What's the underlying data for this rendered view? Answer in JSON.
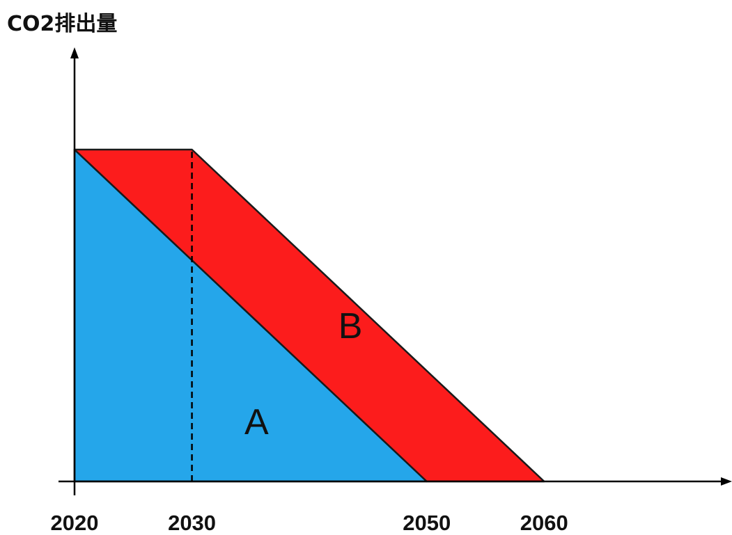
{
  "chart_data": {
    "type": "area",
    "ylabel": "CO2排出量",
    "xlabel": "",
    "x_ticks": [
      {
        "year": 2020,
        "label": "2020"
      },
      {
        "year": 2030,
        "label": "2030"
      },
      {
        "year": 2050,
        "label": "2050"
      },
      {
        "year": 2060,
        "label": "2060"
      }
    ],
    "xlim": [
      2020,
      2076
    ],
    "ylim": [
      0,
      1.0
    ],
    "grid": false,
    "regions": [
      {
        "label": "A",
        "color": "#25a6ea",
        "points": [
          [
            2020,
            1.0
          ],
          [
            2050,
            0
          ],
          [
            2020,
            0
          ]
        ]
      },
      {
        "label": "B",
        "color": "#fc1c1c",
        "points": [
          [
            2020,
            1.0
          ],
          [
            2030,
            1.0
          ],
          [
            2060,
            0
          ],
          [
            2050,
            0
          ]
        ]
      }
    ],
    "reference_lines": [
      {
        "x": 2030,
        "style": "dashed",
        "from_y": 0,
        "to_y": 1.0
      }
    ]
  }
}
